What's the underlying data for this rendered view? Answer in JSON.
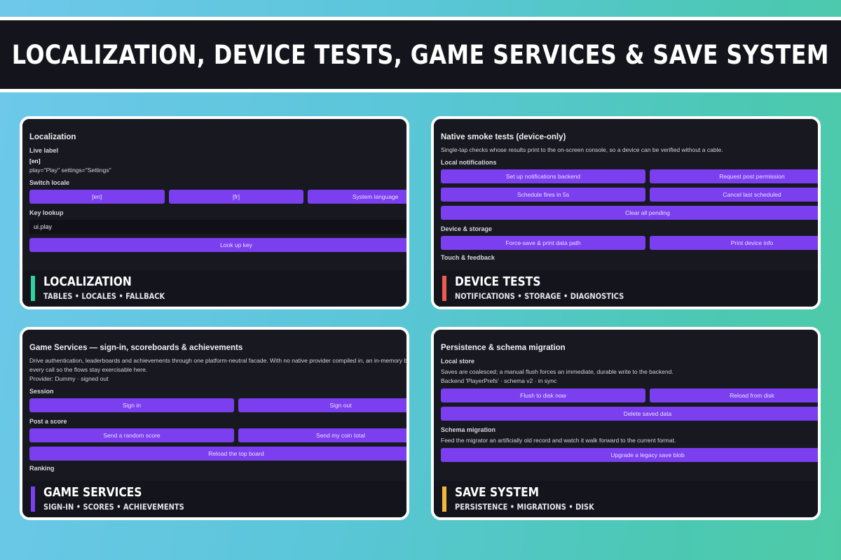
{
  "banner": {
    "title": "LOCALIZATION, DEVICE TESTS, GAME SERVICES & SAVE SYSTEM"
  },
  "colors": {
    "accent_localization": "#2fd3a0",
    "accent_device": "#ef5b4e",
    "accent_services": "#7b3ff0",
    "accent_save": "#f3b73a",
    "button": "#7b3ff0"
  },
  "localization": {
    "title": "Localization",
    "live_label_heading": "Live label",
    "current_locale": "[en]",
    "values_line": "play=\"Play\"   settings=\"Settings\"",
    "switch_heading": "Switch locale",
    "locale_buttons": [
      "[en]",
      "[fr]",
      "System language"
    ],
    "key_heading": "Key lookup",
    "key_input": "ui.play",
    "lookup_button": "Look up key",
    "caption_title": "LOCALIZATION",
    "caption_sub": "TABLES • LOCALES • FALLBACK"
  },
  "device": {
    "title": "Native smoke tests (device-only)",
    "description": "Single-tap checks whose results print to the on-screen console, so a device can be verified without a cable.",
    "notif_heading": "Local notifications",
    "notif_buttons_row1": [
      "Set up notifications backend",
      "Request post permission"
    ],
    "notif_buttons_row2": [
      "Schedule fires in 5s",
      "Cancel last scheduled"
    ],
    "clear_button": "Clear all pending",
    "storage_heading": "Device & storage",
    "storage_buttons": [
      "Force-save & print data path",
      "Print device info"
    ],
    "cut_heading": "Touch & feedback",
    "caption_title": "DEVICE TESTS",
    "caption_sub": "NOTIFICATIONS • STORAGE • DIAGNOSTICS"
  },
  "services": {
    "title": "Game Services — sign-in, scoreboards & achievements",
    "description_line1": "Drive authentication, leaderboards and achievements through one platform-neutral facade. With no native provider compiled in, an in-memory b",
    "description_line2": "every call so the flows stay exercisable here.",
    "provider_line": "Provider: Dummy  ·  signed out",
    "session_heading": "Session",
    "session_buttons": [
      "Sign in",
      "Sign out"
    ],
    "score_heading": "Post a score",
    "score_buttons": [
      "Send a random score",
      "Send my coin total"
    ],
    "reload_button": "Reload the top board",
    "cut_heading": "Ranking",
    "caption_title": "GAME SERVICES",
    "caption_sub": "SIGN-IN • SCORES • ACHIEVEMENTS"
  },
  "save": {
    "title": "Persistence & schema migration",
    "local_heading": "Local store",
    "local_description": "Saves are coalesced; a manual flush forces an immediate, durable write to the backend.",
    "backend_line": "Backend 'PlayerPrefs' · schema v2 · in sync",
    "store_buttons": [
      "Flush to disk now",
      "Reload from disk"
    ],
    "delete_button": "Delete saved data",
    "migration_heading": "Schema migration",
    "migration_description": "Feed the migrator an artificially old record and watch it walk forward to the current format.",
    "upgrade_button": "Upgrade a legacy save blob",
    "caption_title": "SAVE SYSTEM",
    "caption_sub": "PERSISTENCE • MIGRATIONS • DISK"
  }
}
